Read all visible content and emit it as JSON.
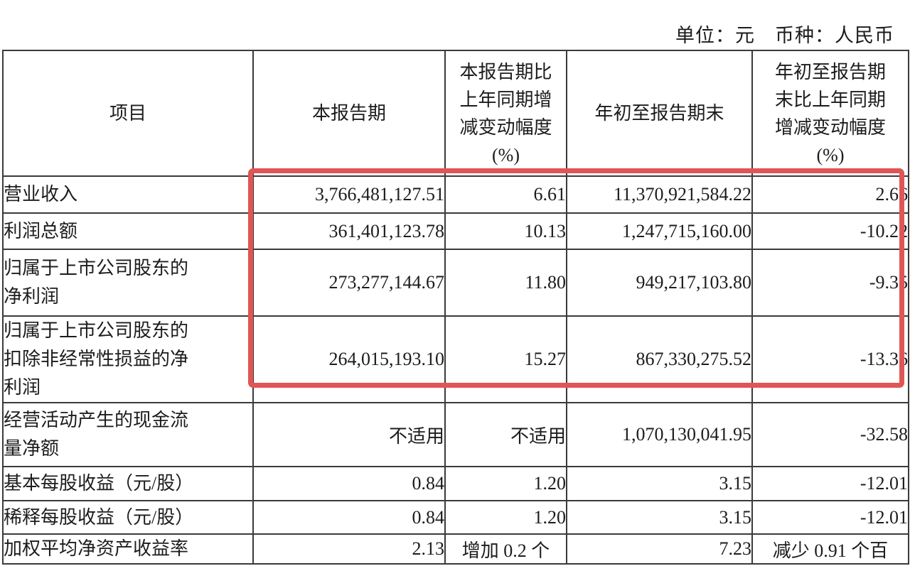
{
  "meta": {
    "unit_note": "单位：元　币种：人民币"
  },
  "table": {
    "headers": {
      "item": "项目",
      "current_period": "本报告期",
      "current_period_change": "本报告期比\n上年同期增\n减变动幅度\n(%)",
      "ytd": "年初至报告期末",
      "ytd_change": "年初至报告期\n末比上年同期\n增减变动幅度\n(%)"
    },
    "rows": [
      {
        "label": "营业收入",
        "values": [
          "3,766,481,127.51",
          "6.61",
          "11,370,921,584.22",
          "2.66"
        ]
      },
      {
        "label": "利润总额",
        "values": [
          "361,401,123.78",
          "10.13",
          "1,247,715,160.00",
          "-10.22"
        ]
      },
      {
        "label": "归属于上市公司股东的\n净利润",
        "values": [
          "273,277,144.67",
          "11.80",
          "949,217,103.80",
          "-9.35"
        ]
      },
      {
        "label": "归属于上市公司股东的\n扣除非经常性损益的净\n利润",
        "values": [
          "264,015,193.10",
          "15.27",
          "867,330,275.52",
          "-13.36"
        ]
      },
      {
        "label": "经营活动产生的现金流\n量净额",
        "values": [
          "不适用",
          "不适用",
          "1,070,130,041.95",
          "-32.58"
        ]
      },
      {
        "label": "基本每股收益（元/股）",
        "values": [
          "0.84",
          "1.20",
          "3.15",
          "-12.01"
        ]
      },
      {
        "label": "稀释每股收益（元/股）",
        "values": [
          "0.84",
          "1.20",
          "3.15",
          "-12.01"
        ]
      },
      {
        "label": "加权平均净资产收益率",
        "values": [
          "2.13",
          "增加 0.2 个",
          "7.23",
          "减少 0.91 个百"
        ]
      }
    ]
  },
  "annotation": {
    "type": "highlight-box",
    "color": "#e05555"
  }
}
